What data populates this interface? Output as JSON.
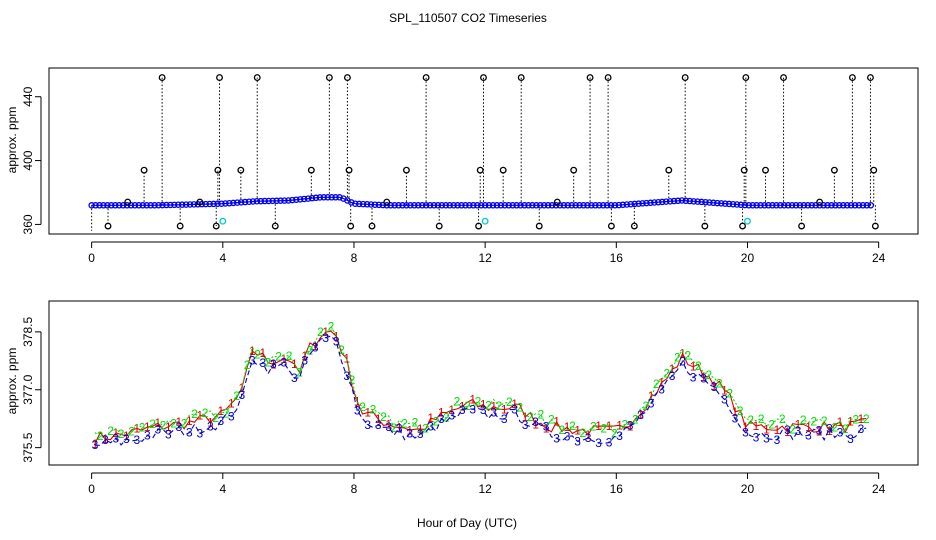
{
  "page_title": "SPL_110507  CO2 Timeseries",
  "colors": {
    "spike": "#000000",
    "series1": "#0000ee",
    "series1_marker": "#00cccc",
    "bottom_s1": "#dd0000",
    "bottom_s2": "#00dd00",
    "bottom_s3": "#0000cc"
  },
  "chart_data": [
    {
      "type": "scatter",
      "title": "SPL_110507  CO2 Timeseries",
      "xlabel": "",
      "ylabel": "approx. ppm",
      "xlim": [
        -1.3,
        25.2
      ],
      "ylim": [
        354,
        458
      ],
      "x_ticks": [
        0,
        4,
        8,
        12,
        16,
        20,
        24
      ],
      "x_tick_labels": [
        "0",
        "4",
        "8",
        "12",
        "16",
        "20",
        "24"
      ],
      "y_ticks": [
        360,
        400,
        440
      ],
      "y_tick_labels": [
        "360",
        "400",
        "440"
      ],
      "baseline": [
        [
          0,
          372
        ],
        [
          2,
          372
        ],
        [
          3,
          372.5
        ],
        [
          4,
          373
        ],
        [
          5,
          374.5
        ],
        [
          6,
          375
        ],
        [
          7,
          377
        ],
        [
          7.6,
          377
        ],
        [
          8,
          373
        ],
        [
          9,
          372
        ],
        [
          11,
          372
        ],
        [
          12,
          372
        ],
        [
          14,
          372
        ],
        [
          16,
          372
        ],
        [
          18,
          375
        ],
        [
          20,
          372
        ],
        [
          22,
          372
        ],
        [
          24,
          372
        ]
      ],
      "spikes_up": [
        2.15,
        3.9,
        5.05,
        7.25,
        7.8,
        10.2,
        11.95,
        13.1,
        15.2,
        15.75,
        18.1,
        19.95,
        21.1,
        23.2,
        23.75
      ],
      "spike_up_value": 452,
      "spikes_mid": [
        1.6,
        3.85,
        4.55,
        6.7,
        7.85,
        9.6,
        11.85,
        12.55,
        14.7,
        17.6,
        19.9,
        20.55,
        22.65,
        23.85
      ],
      "spike_mid_value": 394,
      "spikes_down": [
        0.5,
        2.7,
        3.8,
        5.6,
        7.9,
        8.55,
        10.6,
        11.8,
        13.65,
        15.85,
        16.55,
        18.7,
        19.85,
        21.65,
        23.9
      ],
      "spike_down_value": 359,
      "small_marks": [
        [
          1.1,
          374
        ],
        [
          3.3,
          374
        ],
        [
          9.0,
          374
        ],
        [
          14.2,
          374
        ],
        [
          22.2,
          374
        ]
      ],
      "cyan_marks": [
        [
          4.0,
          362
        ],
        [
          12.0,
          362
        ],
        [
          20.0,
          362
        ]
      ]
    },
    {
      "type": "line",
      "title": "",
      "xlabel": "Hour of Day (UTC)",
      "ylabel": "approx. ppm",
      "xlim": [
        -1.3,
        25.2
      ],
      "ylim": [
        375.05,
        379.3
      ],
      "x_ticks": [
        0,
        4,
        8,
        12,
        16,
        20,
        24
      ],
      "x_tick_labels": [
        "0",
        "4",
        "8",
        "12",
        "16",
        "20",
        "24"
      ],
      "y_ticks": [
        375.5,
        377.0,
        378.5
      ],
      "y_tick_labels": [
        "375.5",
        "377.0",
        "378.5"
      ],
      "series": [
        {
          "name": "1",
          "offset": 0.14
        },
        {
          "name": "2",
          "offset": 0.2
        },
        {
          "name": "3",
          "offset": -0.05
        }
      ],
      "profile": [
        [
          0,
          375.6
        ],
        [
          1,
          375.7
        ],
        [
          2,
          375.9
        ],
        [
          3,
          376.0
        ],
        [
          4,
          376.2
        ],
        [
          4.6,
          376.8
        ],
        [
          4.9,
          377.9
        ],
        [
          5.4,
          377.6
        ],
        [
          6.0,
          377.7
        ],
        [
          6.3,
          377.2
        ],
        [
          6.6,
          377.9
        ],
        [
          7.0,
          378.3
        ],
        [
          7.4,
          378.4
        ],
        [
          7.8,
          377.5
        ],
        [
          8.2,
          376.3
        ],
        [
          9,
          376.0
        ],
        [
          10,
          375.8
        ],
        [
          10.5,
          376.1
        ],
        [
          11,
          376.3
        ],
        [
          11.5,
          376.5
        ],
        [
          12,
          376.4
        ],
        [
          13,
          376.4
        ],
        [
          13.5,
          376.1
        ],
        [
          14,
          375.9
        ],
        [
          15,
          375.8
        ],
        [
          16,
          375.8
        ],
        [
          16.5,
          376.1
        ],
        [
          17,
          376.6
        ],
        [
          17.5,
          377.1
        ],
        [
          18,
          377.7
        ],
        [
          18.5,
          377.4
        ],
        [
          19,
          377.1
        ],
        [
          19.5,
          376.6
        ],
        [
          20,
          375.9
        ],
        [
          21,
          375.9
        ],
        [
          22,
          375.9
        ],
        [
          23,
          375.9
        ],
        [
          23.8,
          376.0
        ]
      ],
      "jitter_seed": 7
    }
  ]
}
